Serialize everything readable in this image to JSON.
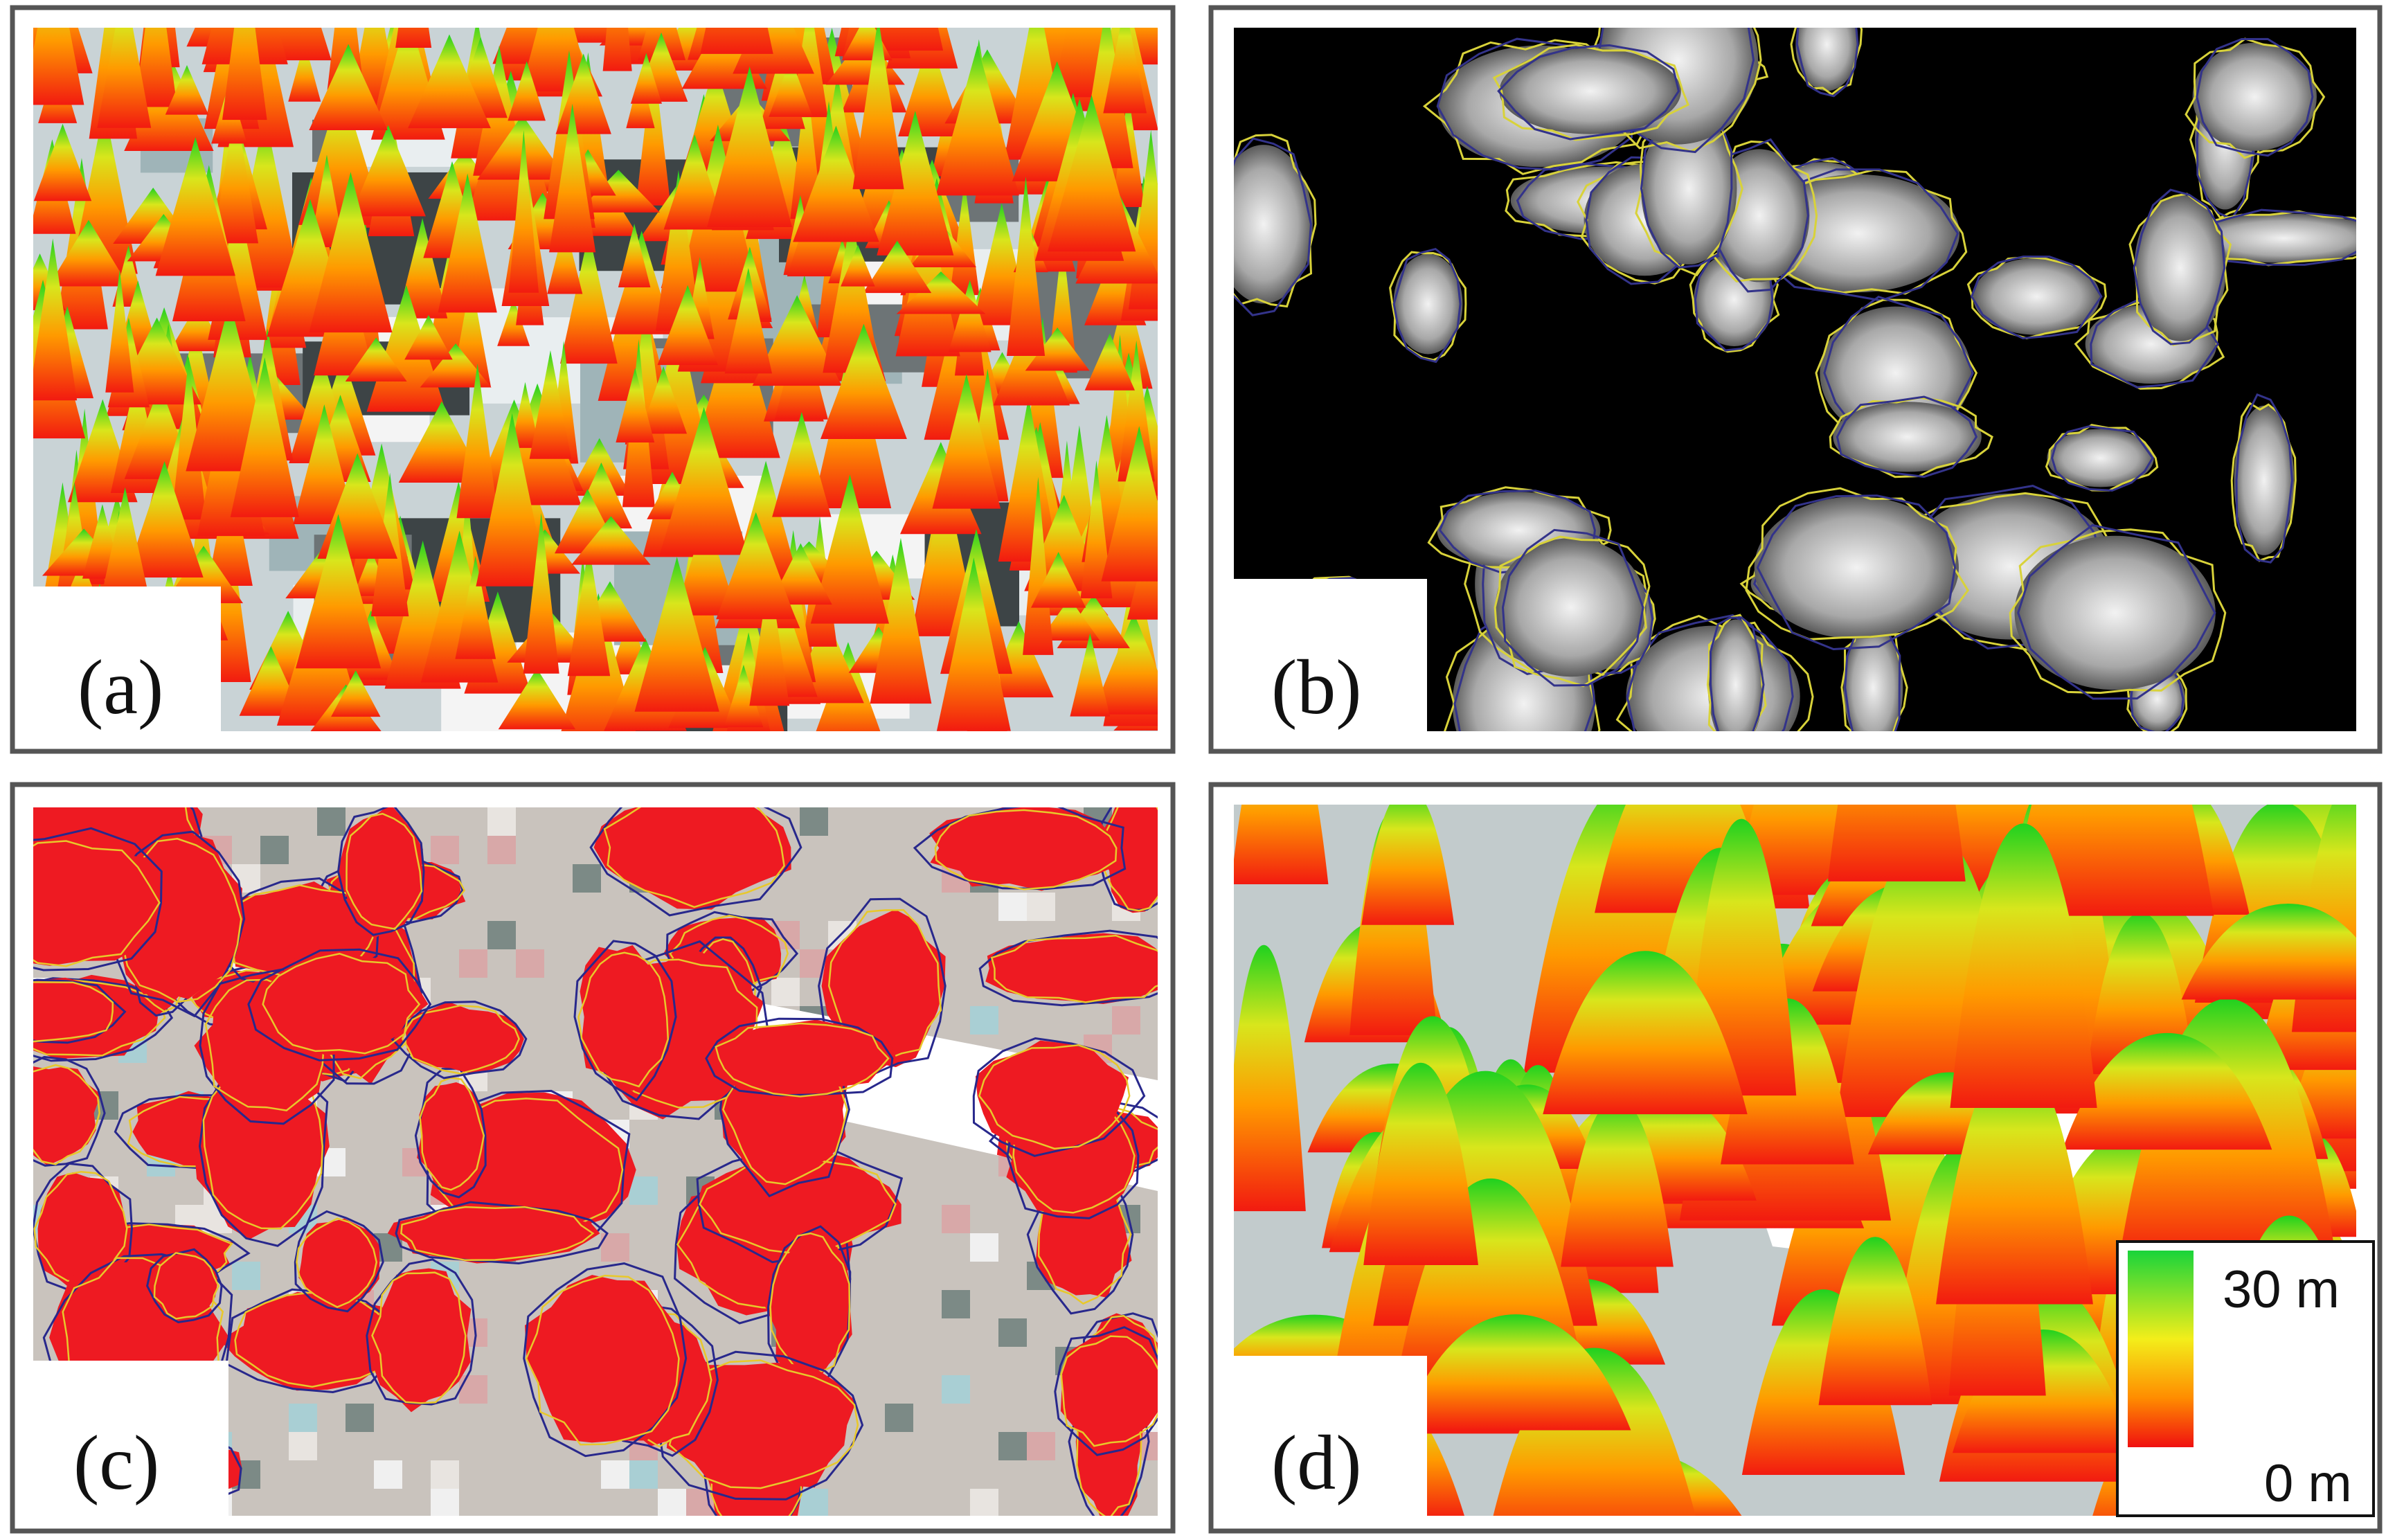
{
  "panels": [
    {
      "label": "(a)"
    },
    {
      "label": "(b)"
    },
    {
      "label": "(c)"
    },
    {
      "label": "(d)"
    }
  ],
  "legend": {
    "max_label": "30 m",
    "min_label": "0 m"
  }
}
